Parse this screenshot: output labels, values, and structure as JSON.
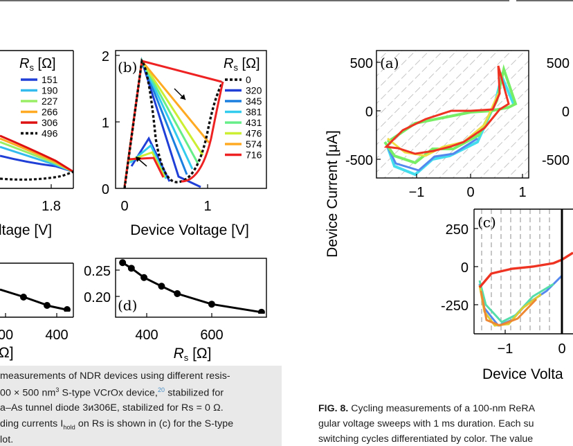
{
  "panel_b": {
    "label": "(b)",
    "xlabel": "Device Voltage [V]",
    "xticks": [
      "0",
      "1"
    ],
    "yticks": [
      "0",
      "1",
      "2"
    ],
    "legend_title": "Rs [Ω]",
    "legend": [
      {
        "label": "0",
        "color": "#000000",
        "dotted": true
      },
      {
        "label": "320",
        "color": "#1f3fd6"
      },
      {
        "label": "345",
        "color": "#1b7fe0"
      },
      {
        "label": "381",
        "color": "#33ccee"
      },
      {
        "label": "431",
        "color": "#66ee88"
      },
      {
        "label": "476",
        "color": "#ccee33"
      },
      {
        "label": "574",
        "color": "#ffaa22"
      },
      {
        "label": "716",
        "color": "#ee2222"
      }
    ]
  },
  "panel_a_partial": {
    "xlabel": "ltage [V]",
    "xticks": [
      "1.8"
    ],
    "legend_title": "Rs [Ω]",
    "legend": [
      {
        "label": "151",
        "color": "#1f3fd6"
      },
      {
        "label": "190",
        "color": "#33bbee"
      },
      {
        "label": "227",
        "color": "#99ee66"
      },
      {
        "label": "266",
        "color": "#ffaa22"
      },
      {
        "label": "306",
        "color": "#dd1111"
      },
      {
        "label": "496",
        "color": "#000000",
        "dotted": true
      }
    ]
  },
  "panel_c_partial": {
    "xlabel": "Ω]",
    "xticks": [
      "00",
      "400"
    ]
  },
  "panel_d": {
    "label": "(d)",
    "xlabel": "Rs [Ω]",
    "xticks": [
      "400",
      "600"
    ],
    "yticks": [
      "0.20",
      "0.25"
    ]
  },
  "chart_data": [
    {
      "type": "scatter",
      "title": "(d)",
      "xlabel": "Rs [Ω]",
      "xlim": [
        300,
        730
      ],
      "ylim": [
        0.175,
        0.27
      ],
      "x": [
        320,
        345,
        381,
        431,
        476,
        574,
        716
      ],
      "y": [
        0.263,
        0.254,
        0.239,
        0.225,
        0.213,
        0.196,
        0.183
      ]
    }
  ],
  "fig8": {
    "panel_a_label": "(a)",
    "panel_c_label": "(c)",
    "ylabel": "Device Current [μA]",
    "a_yticks": [
      "500",
      "0",
      "-500"
    ],
    "a_xticks": [
      "−1",
      "0",
      "1"
    ],
    "b_yticks": [
      "500",
      "0",
      "-500"
    ],
    "c_yticks": [
      "250",
      "0",
      "-250"
    ],
    "c_xticks": [
      "−1",
      "0"
    ],
    "xlabel_partial": "Device Volta"
  },
  "caption_left": {
    "line1": "measurements of NDR devices using different resis-",
    "line2a": "00 × 500 nm",
    "line2sup": "3",
    "line2b": " S-type VCrOx device,",
    "line2ref": "20",
    "line2c": " stabilized for",
    "line3": "a–As tunnel diode 3и306E, stabilized for Rs = 0 Ω.",
    "line4a": "ding currents I",
    "line4sub": "hold",
    "line4b": " on Rs is shown in (c) for the S-type",
    "line5": "lot."
  },
  "caption_right": {
    "label": "FIG. 8.",
    "line1": " Cycling measurements of a 100-nm ReRA",
    "line2": "gular voltage sweeps with 1 ms duration. Each su",
    "line3": "switching cycles differentiated by color. The value"
  }
}
